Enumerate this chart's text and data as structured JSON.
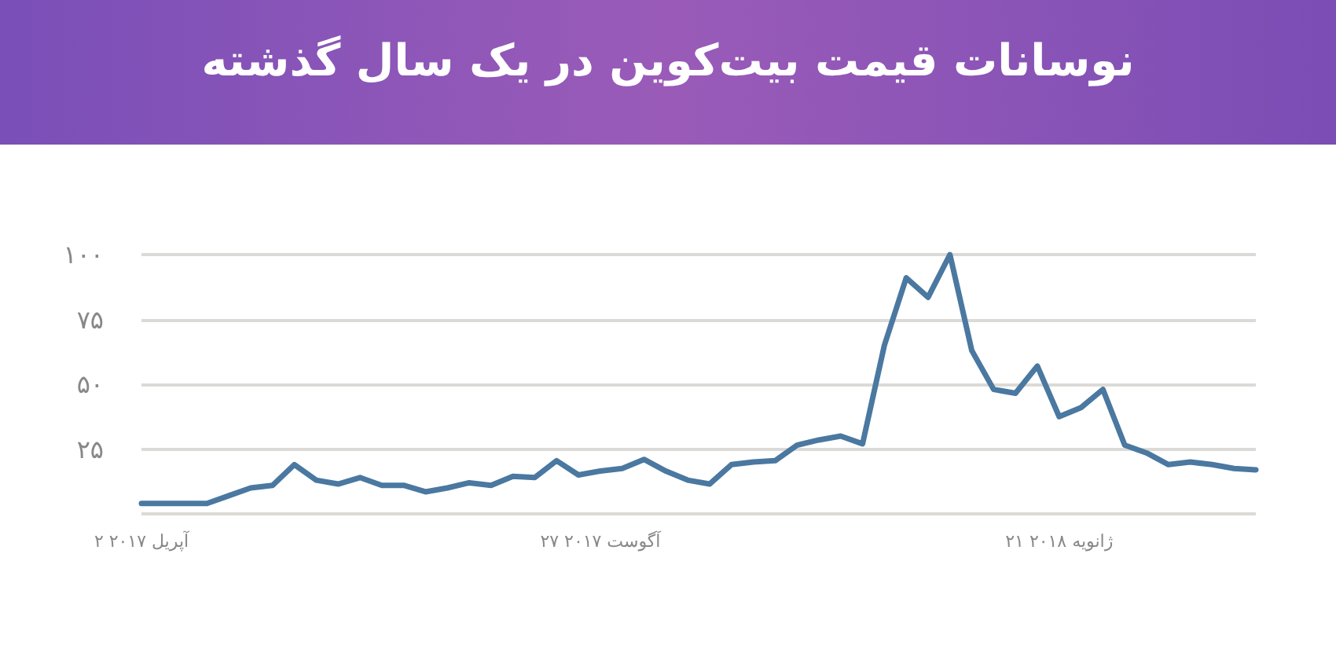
{
  "chart_data": {
    "type": "line",
    "title": "نوسانات قیمت بیت‌کوین در یک سال گذشته",
    "categories": [
      "۲ آپریل ۲۰۱۷",
      null,
      null,
      null,
      null,
      null,
      null,
      null,
      null,
      null,
      null,
      null,
      null,
      null,
      null,
      null,
      null,
      null,
      null,
      null,
      null,
      "۲۷ آگوست ۲۰۱۷",
      null,
      null,
      null,
      null,
      null,
      null,
      null,
      null,
      null,
      null,
      null,
      null,
      null,
      null,
      null,
      null,
      null,
      null,
      null,
      null,
      "۲۱ ژانویه ۲۰۱۸",
      null,
      null,
      null,
      null,
      null,
      null,
      null,
      null,
      null
    ],
    "series": [
      {
        "color": "#4a78a0",
        "values": [
          4,
          4,
          4,
          4,
          7,
          10,
          11,
          19,
          13,
          11.5,
          14,
          11,
          11,
          8.5,
          10,
          12,
          11,
          14.5,
          14,
          20.5,
          15,
          16.5,
          17.5,
          21,
          16.5,
          13,
          11.5,
          19,
          20,
          20.5,
          26.5,
          28.5,
          30,
          27,
          65,
          91,
          83.5,
          100,
          63,
          48,
          46.5,
          57,
          37.5,
          41,
          48,
          26.5,
          23.5,
          19,
          20,
          19,
          17.5,
          17
        ]
      }
    ],
    "ylim": [
      0,
      100
    ],
    "yticks": [
      {
        "value": 0,
        "label": null
      },
      {
        "value": 25,
        "label": "۲۵"
      },
      {
        "value": 50,
        "label": "۵۰"
      },
      {
        "value": 75,
        "label": "۷۵"
      },
      {
        "value": 100,
        "label": "۱۰۰"
      }
    ],
    "grid": "y",
    "marker": "none",
    "line_style": "solid"
  }
}
